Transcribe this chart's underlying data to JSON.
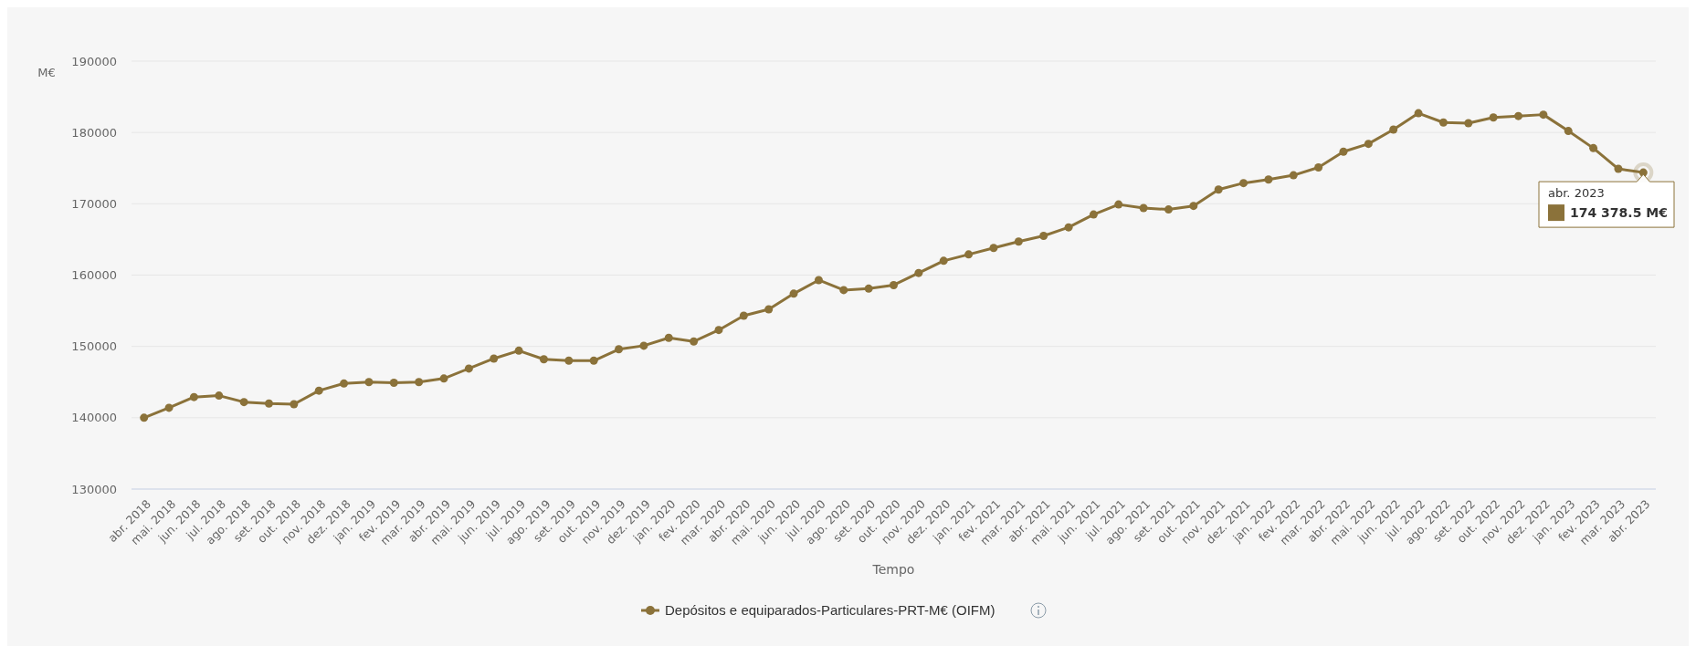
{
  "chart_data": {
    "type": "line",
    "ylabel": "M€",
    "xlabel": "Tempo",
    "categories": [
      "abr. 2018",
      "mai. 2018",
      "jun. 2018",
      "jul. 2018",
      "ago. 2018",
      "set. 2018",
      "out. 2018",
      "nov. 2018",
      "dez. 2018",
      "jan. 2019",
      "fev. 2019",
      "mar. 2019",
      "abr. 2019",
      "mai. 2019",
      "jun. 2019",
      "jul. 2019",
      "ago. 2019",
      "set. 2019",
      "out. 2019",
      "nov. 2019",
      "dez. 2019",
      "jan. 2020",
      "fev. 2020",
      "mar. 2020",
      "abr. 2020",
      "mai. 2020",
      "jun. 2020",
      "jul. 2020",
      "ago. 2020",
      "set. 2020",
      "out. 2020",
      "nov. 2020",
      "dez. 2020",
      "jan. 2021",
      "fev. 2021",
      "mar. 2021",
      "abr. 2021",
      "mai. 2021",
      "jun. 2021",
      "jul. 2021",
      "ago. 2021",
      "set. 2021",
      "out. 2021",
      "nov. 2021",
      "dez. 2021",
      "jan. 2022",
      "fev. 2022",
      "mar. 2022",
      "abr. 2022",
      "mai. 2022",
      "jun. 2022",
      "jul. 2022",
      "ago. 2022",
      "set. 2022",
      "out. 2022",
      "nov. 2022",
      "dez. 2022",
      "jan. 2023",
      "fev. 2023",
      "mar. 2023",
      "abr. 2023"
    ],
    "series": [
      {
        "name": "Depósitos e equiparados-Particulares-PRT-M€ (OIFM)",
        "color": "#8b723a",
        "values": [
          140000,
          141400,
          142900,
          143100,
          142200,
          142000,
          141900,
          143800,
          144800,
          145000,
          144900,
          145000,
          145500,
          146900,
          148300,
          149400,
          148200,
          148000,
          148000,
          149600,
          150100,
          151200,
          150700,
          152300,
          154300,
          155200,
          157400,
          159300,
          157900,
          158100,
          158600,
          160300,
          162000,
          162900,
          163800,
          164700,
          165500,
          166700,
          168500,
          169900,
          169400,
          169200,
          169700,
          172000,
          172900,
          173400,
          174000,
          175100,
          177300,
          178400,
          180400,
          182700,
          181400,
          181300,
          182100,
          182300,
          182500,
          180200,
          177800,
          174900,
          174378.5
        ]
      }
    ],
    "ylim": [
      130000,
      190000
    ],
    "yticks": [
      130000,
      140000,
      150000,
      160000,
      170000,
      180000,
      190000
    ],
    "grid": "y",
    "marker": "circle",
    "line_style": "solid",
    "legend": "bottom",
    "annotations": [
      {
        "text": "174 378.5 M€",
        "x": "abr. 2023",
        "y": 174378.5
      }
    ]
  }
}
